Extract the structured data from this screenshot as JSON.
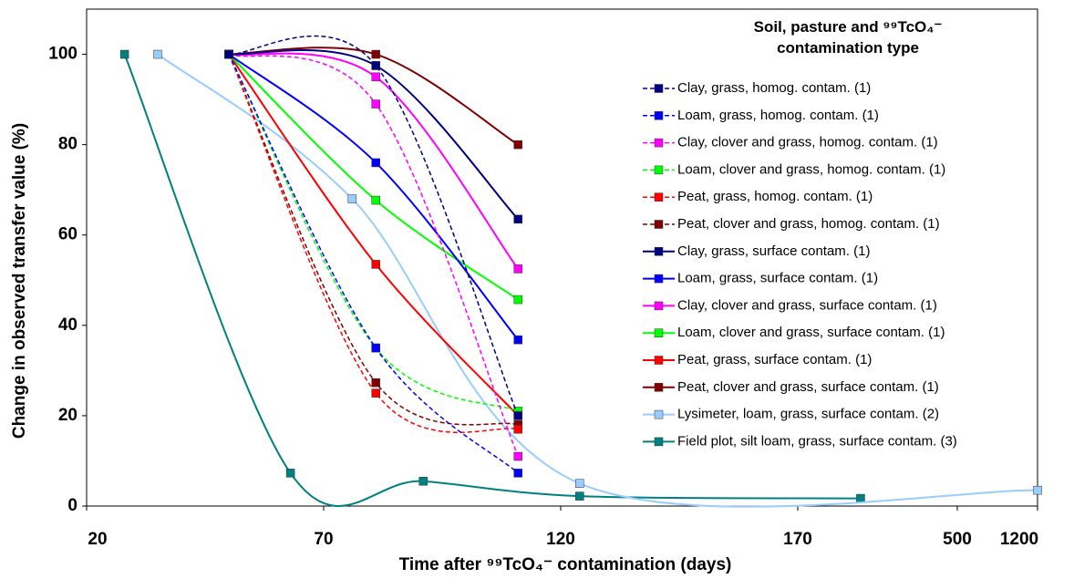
{
  "chart_data": {
    "type": "line",
    "y_label": "Change in observed transfer value (%)",
    "x_label": "Time after ⁹⁹TcO₄⁻ contamination  (days)",
    "legend_title": "Soil, pasture and ⁹⁹TcO₄⁻ contamination type",
    "ylim": [
      0,
      110
    ],
    "yticks": [
      0,
      20,
      40,
      60,
      80,
      100
    ],
    "xlim": [
      20,
      1200
    ],
    "xticks": [
      20,
      70,
      120,
      170,
      500,
      1200
    ],
    "legend": "right",
    "series": [
      {
        "name": "Clay, grass, homog. contam. (1)",
        "color": "#000080",
        "dashed": true,
        "x": [
          50,
          81,
          111
        ],
        "values": [
          100,
          97.5,
          20
        ]
      },
      {
        "name": "Loam, grass, homog. contam. (1)",
        "color": "#0000ff",
        "dashed": true,
        "x": [
          50,
          81,
          111
        ],
        "values": [
          100,
          35,
          7.3
        ]
      },
      {
        "name": "Clay, clover and grass, homog. contam. (1)",
        "color": "#ff00ff",
        "dashed": true,
        "x": [
          50,
          81,
          111
        ],
        "values": [
          100,
          89,
          11
        ]
      },
      {
        "name": "Loam, clover and grass, homog. contam. (1)",
        "color": "#00ff00",
        "dashed": true,
        "x": [
          50,
          81,
          111
        ],
        "values": [
          100,
          35,
          21
        ]
      },
      {
        "name": "Peat, grass, homog. contam. (1)",
        "color": "#ff0000",
        "dashed": true,
        "x": [
          50,
          81,
          111
        ],
        "values": [
          100,
          25,
          17
        ]
      },
      {
        "name": "Peat, clover and grass, homog. contam. (1)",
        "color": "#800000",
        "dashed": true,
        "x": [
          50,
          81,
          111
        ],
        "values": [
          100,
          27.3,
          18
        ]
      },
      {
        "name": "Clay, grass, surface contam. (1)",
        "color": "#000080",
        "dashed": false,
        "x": [
          50,
          81,
          111
        ],
        "values": [
          100,
          97.5,
          63.5
        ]
      },
      {
        "name": "Loam, grass, surface contam. (1)",
        "color": "#0000ff",
        "dashed": false,
        "x": [
          50,
          81,
          111
        ],
        "values": [
          100,
          76,
          36.8
        ]
      },
      {
        "name": "Clay, clover and grass, surface contam. (1)",
        "color": "#ff00ff",
        "dashed": false,
        "x": [
          50,
          81,
          111
        ],
        "values": [
          100,
          95,
          52.5
        ]
      },
      {
        "name": "Loam, clover and grass, surface contam. (1)",
        "color": "#00ff00",
        "dashed": false,
        "x": [
          50,
          81,
          111
        ],
        "values": [
          100,
          67.7,
          45.7
        ]
      },
      {
        "name": "Peat, grass, surface contam. (1)",
        "color": "#ff0000",
        "dashed": false,
        "x": [
          50,
          81,
          111
        ],
        "values": [
          100,
          53.5,
          20
        ]
      },
      {
        "name": "Peat, clover and grass, surface contam. (1)",
        "color": "#800000",
        "dashed": false,
        "x": [
          50,
          81,
          111
        ],
        "values": [
          100,
          100,
          80
        ]
      },
      {
        "name": "Lysimeter, loam, grass, surface contam. (2)",
        "color": "#99ccff",
        "dashed": false,
        "x": [
          35,
          76,
          124,
          1200
        ],
        "values": [
          100,
          68,
          5,
          3.5
        ]
      },
      {
        "name": "Field plot, silt loam, grass, surface contam. (3)",
        "color": "#008080",
        "dashed": false,
        "x": [
          28,
          63,
          91,
          124,
          300
        ],
        "values": [
          100,
          7.3,
          5.5,
          2.2,
          1.7
        ]
      }
    ]
  }
}
